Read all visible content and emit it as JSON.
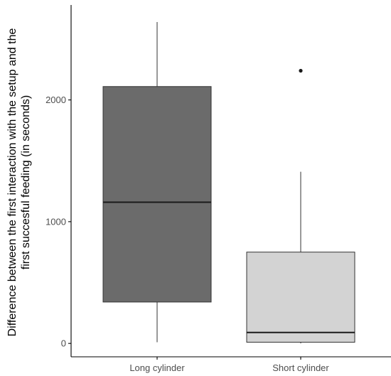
{
  "chart_data": {
    "type": "box",
    "ylabel_lines": [
      "Difference between the first interaction with the setup and the",
      "first succesful feeding (in seconds)"
    ],
    "xlabel": "",
    "categories": [
      "Long cylinder",
      "Short cylinder"
    ],
    "y_ticks": [
      0,
      1000,
      2000
    ],
    "ylim": [
      -110,
      2780
    ],
    "boxes": [
      {
        "label": "Long cylinder",
        "whisker_low": 10,
        "q1": 340,
        "median": 1160,
        "q3": 2110,
        "whisker_high": 2640,
        "outliers": [],
        "fill": "#6b6b6b"
      },
      {
        "label": "Short cylinder",
        "whisker_low": 0,
        "q1": 10,
        "median": 90,
        "q3": 750,
        "whisker_high": 1410,
        "outliers": [
          2240
        ],
        "fill": "#d3d3d3"
      }
    ],
    "grid": false,
    "legend": "none",
    "colors": {
      "axis": "#000000",
      "tick_text": "#4d4d4d",
      "box_stroke": "#333333",
      "median": "#1a1a1a",
      "outlier": "#1a1a1a"
    }
  }
}
